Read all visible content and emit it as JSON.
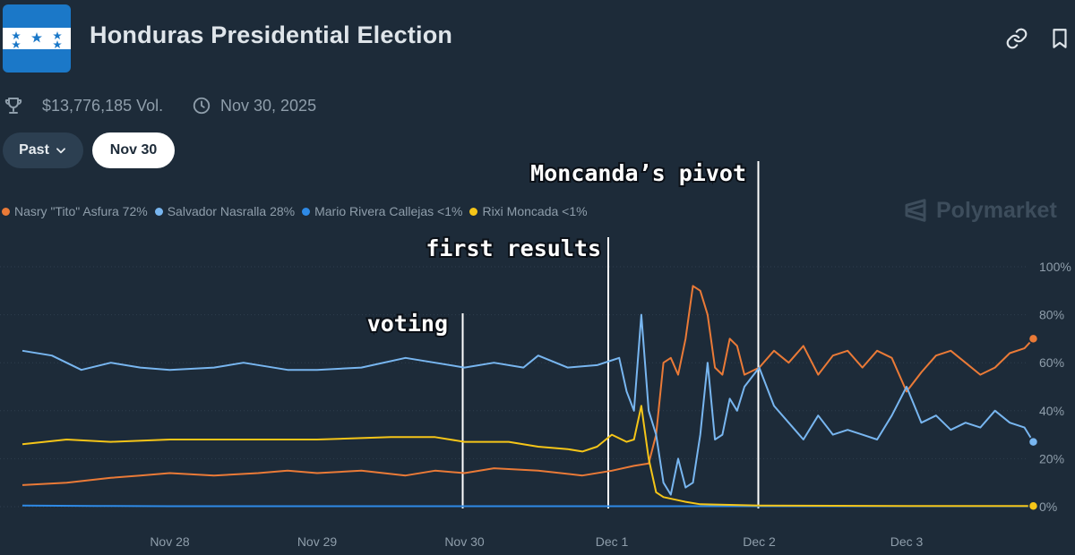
{
  "header": {
    "title": "Honduras Presidential Election",
    "volume": "$13,776,185 Vol.",
    "end_date": "Nov 30, 2025"
  },
  "controls": {
    "past_label": "Past",
    "date_label": "Nov 30"
  },
  "watermark": "Polymarket",
  "icons": [
    "trophy-icon",
    "clock-icon",
    "link-icon",
    "bookmark-icon",
    "chevron-down-icon",
    "polymarket-logo-icon"
  ],
  "legend": [
    {
      "label": "Nasry \"Tito\" Asfura 72%",
      "color": "#ea7a37"
    },
    {
      "label": "Salvador Nasralla 28%",
      "color": "#78b6f0"
    },
    {
      "label": "Mario Rivera Callejas <1%",
      "color": "#2e8ae6"
    },
    {
      "label": "Rixi Moncada <1%",
      "color": "#f5c518"
    }
  ],
  "chart_data": {
    "type": "line",
    "x_ticks": [
      "Nov 28",
      "Nov 29",
      "Nov 30",
      "Dec 1",
      "Dec 2",
      "Dec 3"
    ],
    "y_ticks": [
      "0%",
      "20%",
      "40%",
      "60%",
      "80%",
      "100%"
    ],
    "ylim": [
      0,
      100
    ],
    "x_range": [
      27.0,
      34.0
    ],
    "grid": true,
    "annotations": [
      {
        "label": "voting",
        "x": 30.0
      },
      {
        "label": "first results",
        "x": 31.0
      },
      {
        "label": "Moncanda’s pivot",
        "x": 32.0
      }
    ],
    "series": [
      {
        "name": "Nasry \"Tito\" Asfura",
        "color": "#ea7a37",
        "end_marker": true,
        "points": [
          [
            27.0,
            9
          ],
          [
            27.3,
            10
          ],
          [
            27.6,
            12
          ],
          [
            27.8,
            13
          ],
          [
            28.0,
            14
          ],
          [
            28.3,
            13
          ],
          [
            28.6,
            14
          ],
          [
            28.8,
            15
          ],
          [
            29.0,
            14
          ],
          [
            29.3,
            15
          ],
          [
            29.6,
            13
          ],
          [
            29.8,
            15
          ],
          [
            30.0,
            14
          ],
          [
            30.2,
            16
          ],
          [
            30.5,
            15
          ],
          [
            30.8,
            13
          ],
          [
            31.0,
            15
          ],
          [
            31.15,
            17
          ],
          [
            31.25,
            18
          ],
          [
            31.3,
            30
          ],
          [
            31.35,
            60
          ],
          [
            31.4,
            62
          ],
          [
            31.45,
            55
          ],
          [
            31.5,
            70
          ],
          [
            31.55,
            92
          ],
          [
            31.6,
            90
          ],
          [
            31.65,
            80
          ],
          [
            31.7,
            58
          ],
          [
            31.75,
            55
          ],
          [
            31.8,
            70
          ],
          [
            31.85,
            67
          ],
          [
            31.9,
            55
          ],
          [
            32.0,
            58
          ],
          [
            32.1,
            65
          ],
          [
            32.2,
            60
          ],
          [
            32.3,
            67
          ],
          [
            32.4,
            55
          ],
          [
            32.5,
            63
          ],
          [
            32.6,
            65
          ],
          [
            32.7,
            58
          ],
          [
            32.8,
            65
          ],
          [
            32.9,
            62
          ],
          [
            33.0,
            48
          ],
          [
            33.1,
            56
          ],
          [
            33.2,
            63
          ],
          [
            33.3,
            65
          ],
          [
            33.4,
            60
          ],
          [
            33.5,
            55
          ],
          [
            33.6,
            58
          ],
          [
            33.7,
            64
          ],
          [
            33.8,
            66
          ],
          [
            33.86,
            70
          ]
        ]
      },
      {
        "name": "Salvador Nasralla",
        "color": "#78b6f0",
        "end_marker": true,
        "points": [
          [
            27.0,
            65
          ],
          [
            27.2,
            63
          ],
          [
            27.4,
            57
          ],
          [
            27.6,
            60
          ],
          [
            27.8,
            58
          ],
          [
            28.0,
            57
          ],
          [
            28.3,
            58
          ],
          [
            28.5,
            60
          ],
          [
            28.8,
            57
          ],
          [
            29.0,
            57
          ],
          [
            29.3,
            58
          ],
          [
            29.6,
            62
          ],
          [
            29.8,
            60
          ],
          [
            30.0,
            58
          ],
          [
            30.2,
            60
          ],
          [
            30.4,
            58
          ],
          [
            30.5,
            63
          ],
          [
            30.7,
            58
          ],
          [
            30.9,
            59
          ],
          [
            31.0,
            61
          ],
          [
            31.05,
            62
          ],
          [
            31.1,
            48
          ],
          [
            31.15,
            40
          ],
          [
            31.2,
            80
          ],
          [
            31.25,
            40
          ],
          [
            31.3,
            30
          ],
          [
            31.35,
            10
          ],
          [
            31.4,
            5
          ],
          [
            31.45,
            20
          ],
          [
            31.5,
            8
          ],
          [
            31.55,
            10
          ],
          [
            31.6,
            30
          ],
          [
            31.65,
            60
          ],
          [
            31.7,
            28
          ],
          [
            31.75,
            30
          ],
          [
            31.8,
            45
          ],
          [
            31.85,
            40
          ],
          [
            31.9,
            50
          ],
          [
            32.0,
            58
          ],
          [
            32.1,
            42
          ],
          [
            32.2,
            35
          ],
          [
            32.3,
            28
          ],
          [
            32.4,
            38
          ],
          [
            32.5,
            30
          ],
          [
            32.6,
            32
          ],
          [
            32.7,
            30
          ],
          [
            32.8,
            28
          ],
          [
            32.9,
            38
          ],
          [
            33.0,
            50
          ],
          [
            33.1,
            35
          ],
          [
            33.2,
            38
          ],
          [
            33.3,
            32
          ],
          [
            33.4,
            35
          ],
          [
            33.5,
            33
          ],
          [
            33.6,
            40
          ],
          [
            33.7,
            35
          ],
          [
            33.8,
            33
          ],
          [
            33.86,
            27
          ]
        ]
      },
      {
        "name": "Mario Rivera Callejas",
        "color": "#2e8ae6",
        "end_marker": false,
        "points": [
          [
            27.0,
            0.5
          ],
          [
            27.5,
            0.3
          ],
          [
            28.0,
            0.2
          ],
          [
            29.0,
            0.2
          ],
          [
            30.0,
            0.2
          ],
          [
            31.0,
            0.2
          ],
          [
            32.0,
            0.2
          ],
          [
            33.0,
            0.2
          ],
          [
            33.86,
            0.2
          ]
        ]
      },
      {
        "name": "Rixi Moncada",
        "color": "#f5c518",
        "end_marker": true,
        "points": [
          [
            27.0,
            26
          ],
          [
            27.3,
            28
          ],
          [
            27.6,
            27
          ],
          [
            28.0,
            28
          ],
          [
            28.5,
            28
          ],
          [
            29.0,
            28
          ],
          [
            29.5,
            29
          ],
          [
            29.8,
            29
          ],
          [
            30.0,
            27
          ],
          [
            30.3,
            27
          ],
          [
            30.5,
            25
          ],
          [
            30.7,
            24
          ],
          [
            30.8,
            23
          ],
          [
            30.9,
            25
          ],
          [
            31.0,
            30
          ],
          [
            31.1,
            27
          ],
          [
            31.15,
            28
          ],
          [
            31.2,
            42
          ],
          [
            31.25,
            20
          ],
          [
            31.3,
            6
          ],
          [
            31.35,
            4
          ],
          [
            31.5,
            2
          ],
          [
            31.6,
            1
          ],
          [
            32.0,
            0.5
          ],
          [
            33.0,
            0.3
          ],
          [
            33.86,
            0.3
          ]
        ]
      }
    ]
  }
}
